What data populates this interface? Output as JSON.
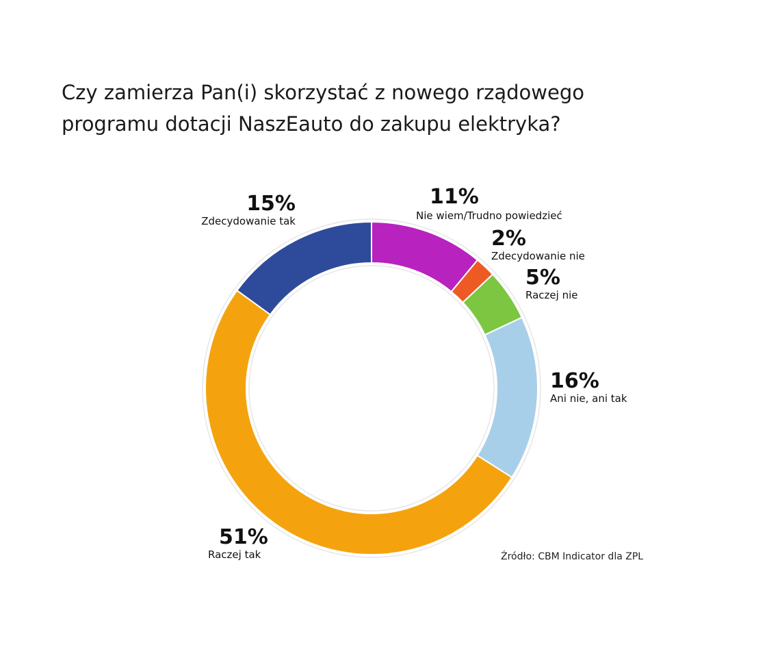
{
  "chart_data": {
    "type": "pie",
    "variant": "donut",
    "title_lines": [
      "Czy zamierza Pan(i) skorzystać z nowego rządowego",
      "programu dotacji NaszEauto do zakupu elektryka?"
    ],
    "slices": [
      {
        "name": "Nie wiem/Trudno powiedzieć",
        "value": 11,
        "label": "11%",
        "color": "#b822bf"
      },
      {
        "name": "Zdecydowanie nie",
        "value": 2,
        "label": "2%",
        "color": "#ee5a24"
      },
      {
        "name": "Raczej nie",
        "value": 5,
        "label": "5%",
        "color": "#7cc641"
      },
      {
        "name": "Ani nie, ani tak",
        "value": 16,
        "label": "16%",
        "color": "#a8cfe9"
      },
      {
        "name": "Raczej tak",
        "value": 51,
        "label": "51%",
        "color": "#f4a30f"
      },
      {
        "name": "Zdecydowanie tak",
        "value": 15,
        "label": "15%",
        "color": "#2e4b9b"
      }
    ],
    "source": "Źródło: CBM Indicator dla ZPL"
  }
}
